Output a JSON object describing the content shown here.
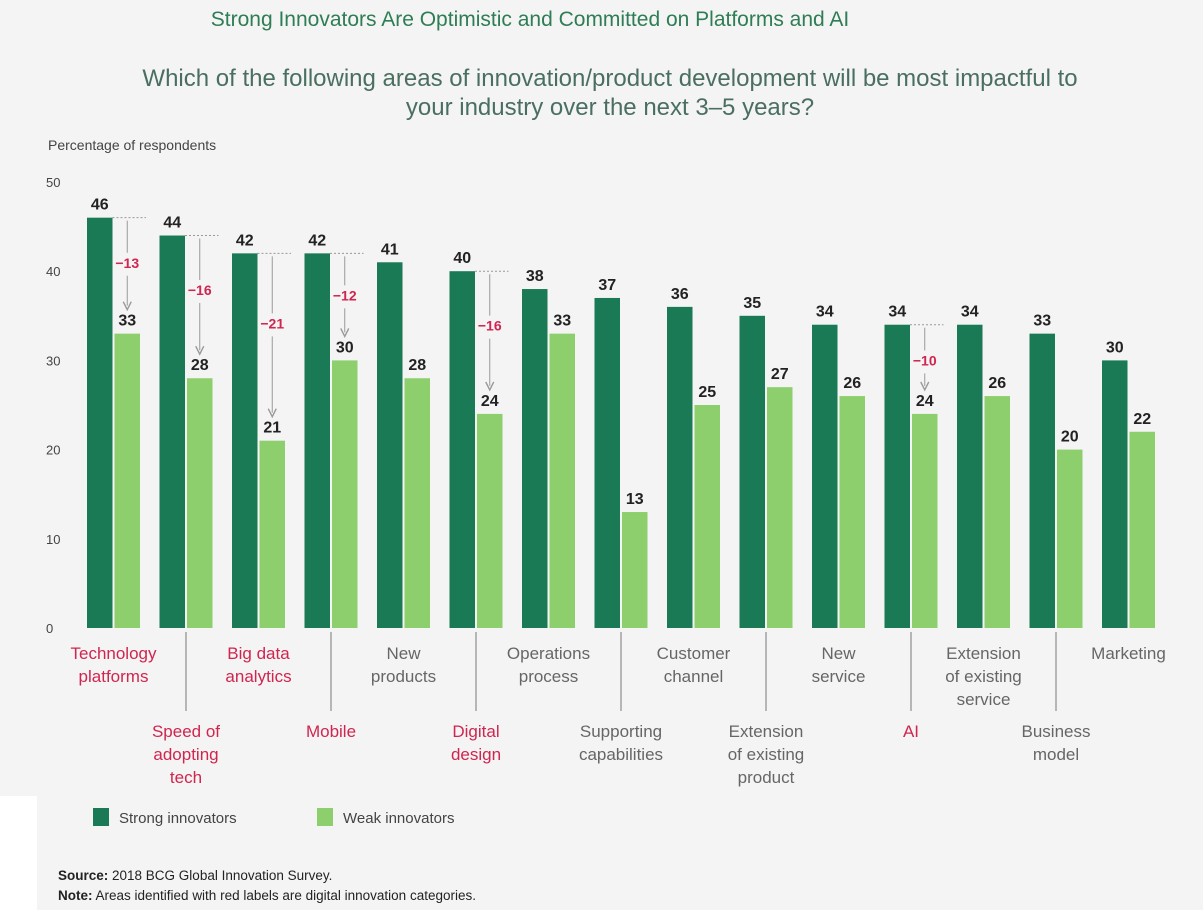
{
  "header": {
    "title": "Strong Innovators Are Optimistic and Committed on Platforms and AI",
    "subtitle_line1": "Which of the following areas of innovation/product development will be most impactful to",
    "subtitle_line2": "your industry over the next 3–5 years?"
  },
  "footer": {
    "source_label": "Source:",
    "source_text": " 2018 BCG Global Innovation Survey.",
    "note_label": "Note:",
    "note_text": " Areas identified with red labels are digital innovation categories."
  },
  "colors": {
    "strong": "#1a7a55",
    "weak": "#8dcf6c",
    "digital_label": "#d0254f",
    "normal_label": "#666666",
    "gap_text": "#d0254f"
  },
  "chart_data": {
    "type": "bar",
    "ylabel": "Percentage of respondents",
    "ylim": [
      0,
      50
    ],
    "yticks": [
      0,
      10,
      20,
      30,
      40,
      50
    ],
    "grid": false,
    "legend_position": "bottom-left",
    "categories": [
      {
        "lines": [
          "Technology",
          "platforms"
        ],
        "row": 0,
        "digital": true
      },
      {
        "lines": [
          "Speed of",
          "adopting",
          "tech"
        ],
        "row": 1,
        "digital": true
      },
      {
        "lines": [
          "Big data",
          "analytics"
        ],
        "row": 0,
        "digital": true
      },
      {
        "lines": [
          "Mobile"
        ],
        "row": 1,
        "digital": true
      },
      {
        "lines": [
          "New",
          "products"
        ],
        "row": 0,
        "digital": false
      },
      {
        "lines": [
          "Digital",
          "design"
        ],
        "row": 1,
        "digital": true
      },
      {
        "lines": [
          "Operations",
          "process"
        ],
        "row": 0,
        "digital": false
      },
      {
        "lines": [
          "Supporting",
          "capabilities"
        ],
        "row": 1,
        "digital": false
      },
      {
        "lines": [
          "Customer",
          "channel"
        ],
        "row": 0,
        "digital": false
      },
      {
        "lines": [
          "Extension",
          "of existing",
          "product"
        ],
        "row": 1,
        "digital": false
      },
      {
        "lines": [
          "New",
          "service"
        ],
        "row": 0,
        "digital": false
      },
      {
        "lines": [
          "AI"
        ],
        "row": 1,
        "digital": true
      },
      {
        "lines": [
          "Extension",
          "of existing",
          "service"
        ],
        "row": 0,
        "digital": false
      },
      {
        "lines": [
          "Business",
          "model"
        ],
        "row": 1,
        "digital": false
      },
      {
        "lines": [
          "Marketing"
        ],
        "row": 0,
        "digital": false
      }
    ],
    "series": [
      {
        "name": "Strong innovators",
        "values": [
          46,
          44,
          42,
          42,
          41,
          40,
          38,
          37,
          36,
          35,
          34,
          34,
          34,
          33,
          30
        ]
      },
      {
        "name": "Weak innovators",
        "values": [
          33,
          28,
          21,
          30,
          28,
          24,
          33,
          13,
          25,
          27,
          26,
          24,
          26,
          20,
          22
        ]
      }
    ],
    "gap_annotations": [
      {
        "category_index": 0,
        "label": "−13"
      },
      {
        "category_index": 1,
        "label": "−16"
      },
      {
        "category_index": 2,
        "label": "−21"
      },
      {
        "category_index": 3,
        "label": "−12"
      },
      {
        "category_index": 5,
        "label": "−16"
      },
      {
        "category_index": 11,
        "label": "−10"
      }
    ]
  }
}
